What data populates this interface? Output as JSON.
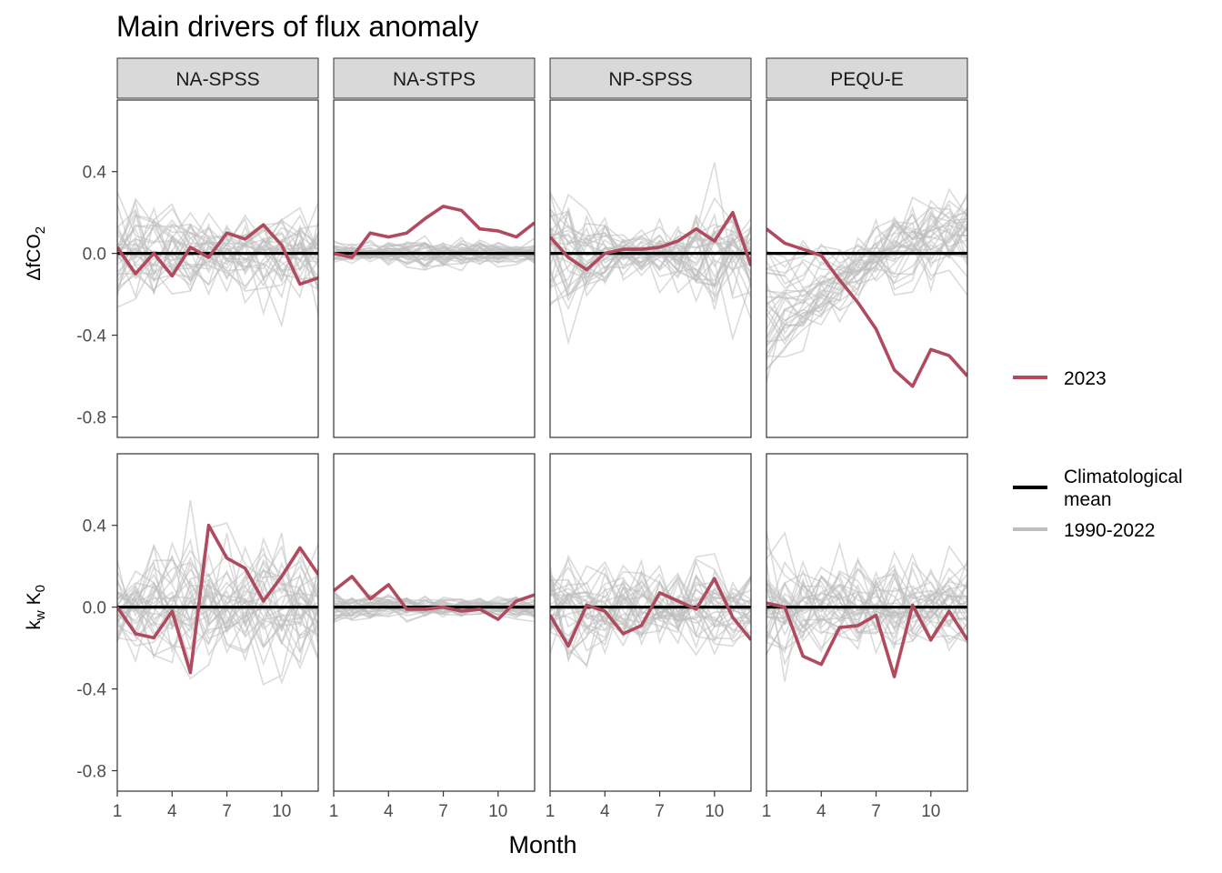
{
  "title": "Main drivers of flux anomaly",
  "xlabel": "Month",
  "colors": {
    "y2023": "#B04A5E",
    "mean": "#000000",
    "history": "#BEBEBE",
    "strip": "#D9D9D9"
  },
  "legend": {
    "y2023_label": "2023",
    "mean_label_line1": "Climatological",
    "mean_label_line2": "mean",
    "history_label": "1990-2022"
  },
  "chart_data": {
    "type": "line",
    "panels": [
      "NA-SPSS",
      "NA-STPS",
      "NP-SPSS",
      "PEQU-E"
    ],
    "rows": [
      {
        "ylabel_main": "ΔfCO",
        "ylabel_sub": "2"
      },
      {
        "ylabel_main": "k",
        "ylabel_sub": "w",
        "ylabel_main2": " K",
        "ylabel_sub2": "0"
      }
    ],
    "x": [
      1,
      2,
      3,
      4,
      5,
      6,
      7,
      8,
      9,
      10,
      11,
      12
    ],
    "x_ticks": [
      1,
      4,
      7,
      10
    ],
    "x_tick_labels": [
      "1",
      "4",
      "7",
      "10"
    ],
    "ylim": [
      -0.9,
      0.75
    ],
    "y_ticks": [
      0.4,
      0.0,
      -0.4,
      -0.8
    ],
    "y_tick_labels": [
      "0.4",
      "0.0",
      "-0.4",
      "-0.8"
    ],
    "grid": false,
    "legend_position": "right",
    "history_years": "1990-2022",
    "series_2023": [
      [
        [
          0.03,
          -0.1,
          0.0,
          -0.11,
          0.03,
          -0.02,
          0.1,
          0.07,
          0.14,
          0.04,
          -0.15,
          -0.12
        ],
        [
          0.0,
          -0.02,
          0.1,
          0.08,
          0.1,
          0.17,
          0.23,
          0.21,
          0.12,
          0.11,
          0.08,
          0.15
        ],
        [
          0.08,
          -0.02,
          -0.08,
          0.0,
          0.02,
          0.02,
          0.03,
          0.06,
          0.12,
          0.06,
          0.2,
          -0.06
        ],
        [
          0.12,
          0.05,
          0.02,
          -0.01,
          -0.13,
          -0.24,
          -0.37,
          -0.57,
          -0.65,
          -0.47,
          -0.5,
          -0.6
        ]
      ],
      [
        [
          0.0,
          -0.13,
          -0.15,
          -0.02,
          -0.32,
          0.4,
          0.24,
          0.19,
          0.03,
          0.15,
          0.29,
          0.16
        ],
        [
          0.08,
          0.15,
          0.04,
          0.11,
          -0.01,
          -0.01,
          0.0,
          -0.02,
          -0.01,
          -0.06,
          0.03,
          0.06
        ],
        [
          -0.04,
          -0.19,
          0.01,
          -0.02,
          -0.13,
          -0.09,
          0.07,
          0.03,
          -0.01,
          0.14,
          -0.05,
          -0.16
        ],
        [
          0.02,
          0.0,
          -0.24,
          -0.28,
          -0.1,
          -0.09,
          -0.04,
          -0.34,
          0.01,
          -0.16,
          -0.02,
          -0.16
        ]
      ]
    ],
    "climatological_mean": [
      [
        [
          0,
          0,
          0,
          0,
          0,
          0,
          0,
          0,
          0,
          0,
          0,
          0
        ],
        [
          0,
          0,
          0,
          0,
          0,
          0,
          0,
          0,
          0,
          0,
          0,
          0
        ],
        [
          0,
          0,
          0,
          0,
          0,
          0,
          0,
          0,
          0,
          0,
          0,
          0
        ],
        [
          0,
          0,
          0,
          0,
          0,
          0,
          0,
          0,
          0,
          0,
          0,
          0
        ]
      ],
      [
        [
          0,
          0,
          0,
          0,
          0,
          0,
          0,
          0,
          0,
          0,
          0,
          0
        ],
        [
          0,
          0,
          0,
          0,
          0,
          0,
          0,
          0,
          0,
          0,
          0,
          0
        ],
        [
          0,
          0,
          0,
          0,
          0,
          0,
          0,
          0,
          0,
          0,
          0,
          0
        ],
        [
          0,
          0,
          0,
          0,
          0,
          0,
          0,
          0,
          0,
          0,
          0,
          0
        ]
      ]
    ],
    "history_spread": [
      [
        {
          "count": 33,
          "base": [
            0,
            0,
            0,
            0,
            0,
            0,
            0,
            0,
            0,
            0,
            0,
            0
          ],
          "amp": [
            0.15,
            0.18,
            0.14,
            0.13,
            0.12,
            0.12,
            0.11,
            0.12,
            0.13,
            0.13,
            0.14,
            0.17
          ],
          "trend": [
            0,
            0,
            0,
            0,
            0,
            0,
            0,
            0,
            0,
            0,
            0,
            0
          ]
        },
        {
          "count": 33,
          "base": [
            0,
            0,
            0,
            0,
            0,
            0,
            0,
            0,
            0,
            0,
            0,
            0
          ],
          "amp": [
            0.03,
            0.03,
            0.03,
            0.04,
            0.04,
            0.05,
            0.05,
            0.05,
            0.04,
            0.04,
            0.03,
            0.03
          ],
          "trend": [
            0,
            0,
            0,
            0,
            0,
            0,
            0,
            0,
            0,
            0,
            0,
            0
          ]
        },
        {
          "count": 33,
          "base": [
            0,
            0,
            0,
            0,
            0,
            0,
            0,
            0,
            0,
            0,
            0,
            0
          ],
          "amp": [
            0.18,
            0.18,
            0.14,
            0.11,
            0.08,
            0.07,
            0.08,
            0.1,
            0.14,
            0.18,
            0.18,
            0.15
          ],
          "trend": [
            0,
            0,
            0,
            0,
            0,
            0,
            0,
            0,
            0,
            0,
            0,
            0
          ]
        },
        {
          "count": 33,
          "base": [
            0,
            0,
            0,
            0,
            0,
            0,
            0,
            0,
            0,
            0,
            0,
            0
          ],
          "amp": [
            0.12,
            0.11,
            0.09,
            0.08,
            0.08,
            0.09,
            0.1,
            0.11,
            0.11,
            0.11,
            0.12,
            0.13
          ],
          "trend": [
            -0.55,
            -0.48,
            -0.4,
            -0.32,
            -0.22,
            -0.12,
            -0.02,
            0.06,
            0.12,
            0.17,
            0.22,
            0.27
          ]
        }
      ],
      [
        {
          "count": 33,
          "base": [
            0,
            0,
            0,
            0,
            0,
            0,
            0,
            0,
            0,
            0,
            0,
            0
          ],
          "amp": [
            0.12,
            0.14,
            0.16,
            0.2,
            0.24,
            0.22,
            0.2,
            0.19,
            0.2,
            0.19,
            0.17,
            0.13
          ],
          "trend": [
            0,
            0,
            0,
            0,
            0,
            0,
            0,
            0,
            0,
            0,
            0,
            0
          ]
        },
        {
          "count": 33,
          "base": [
            0,
            0,
            0,
            0,
            0,
            0,
            0,
            0,
            0,
            0,
            0,
            0
          ],
          "amp": [
            0.05,
            0.05,
            0.04,
            0.04,
            0.04,
            0.03,
            0.03,
            0.03,
            0.03,
            0.03,
            0.04,
            0.04
          ],
          "trend": [
            0,
            0,
            0,
            0,
            0,
            0,
            0,
            0,
            0,
            0,
            0,
            0
          ]
        },
        {
          "count": 33,
          "base": [
            0,
            0,
            0,
            0,
            0,
            0,
            0,
            0,
            0,
            0,
            0,
            0
          ],
          "amp": [
            0.14,
            0.15,
            0.14,
            0.13,
            0.13,
            0.13,
            0.12,
            0.12,
            0.13,
            0.13,
            0.13,
            0.12
          ],
          "trend": [
            0,
            0,
            0,
            0,
            0,
            0,
            0,
            0,
            0,
            0,
            0,
            0
          ]
        },
        {
          "count": 33,
          "base": [
            0,
            0,
            0,
            0,
            0,
            0,
            0,
            0,
            0,
            0,
            0,
            0
          ],
          "amp": [
            0.14,
            0.15,
            0.14,
            0.13,
            0.13,
            0.13,
            0.13,
            0.13,
            0.13,
            0.12,
            0.12,
            0.12
          ],
          "trend": [
            0,
            0,
            0,
            0,
            0,
            0,
            0,
            0,
            0,
            0,
            0,
            0
          ]
        }
      ]
    ]
  }
}
